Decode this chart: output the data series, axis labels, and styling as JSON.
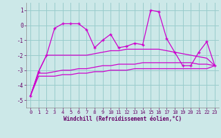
{
  "xlabel": "Windchill (Refroidissement éolien,°C)",
  "background_color": "#cce8e8",
  "grid_color": "#99cccc",
  "line_color": "#cc00cc",
  "x": [
    0,
    1,
    2,
    3,
    4,
    5,
    6,
    7,
    8,
    9,
    10,
    11,
    12,
    13,
    14,
    15,
    16,
    17,
    18,
    19,
    20,
    21,
    22,
    23
  ],
  "y_main": [
    -4.7,
    -3.1,
    -2.0,
    -0.2,
    0.1,
    0.1,
    0.1,
    -0.3,
    -1.5,
    -1.0,
    -0.6,
    -1.5,
    -1.4,
    -1.2,
    -1.3,
    1.0,
    0.9,
    -0.9,
    -1.8,
    -2.7,
    -2.7,
    -1.8,
    -1.1,
    -2.7
  ],
  "y_upper": [
    -4.7,
    -3.1,
    -2.0,
    -2.0,
    -2.0,
    -2.0,
    -2.0,
    -2.0,
    -1.9,
    -1.8,
    -1.7,
    -1.7,
    -1.6,
    -1.6,
    -1.6,
    -1.6,
    -1.6,
    -1.7,
    -1.8,
    -1.9,
    -2.0,
    -2.1,
    -2.2,
    -2.7
  ],
  "y_mid": [
    -4.7,
    -3.2,
    -3.2,
    -3.1,
    -3.0,
    -3.0,
    -2.9,
    -2.9,
    -2.8,
    -2.7,
    -2.7,
    -2.6,
    -2.6,
    -2.6,
    -2.5,
    -2.5,
    -2.5,
    -2.5,
    -2.5,
    -2.5,
    -2.5,
    -2.6,
    -2.6,
    -2.7
  ],
  "y_lower": [
    -4.7,
    -3.4,
    -3.4,
    -3.4,
    -3.3,
    -3.3,
    -3.2,
    -3.2,
    -3.1,
    -3.1,
    -3.0,
    -3.0,
    -3.0,
    -2.9,
    -2.9,
    -2.9,
    -2.9,
    -2.9,
    -2.9,
    -2.9,
    -2.9,
    -2.9,
    -2.9,
    -2.7
  ],
  "ylim": [
    -5.5,
    1.5
  ],
  "yticks": [
    -5,
    -4,
    -3,
    -2,
    -1,
    0,
    1
  ],
  "xticks": [
    0,
    1,
    2,
    3,
    4,
    5,
    6,
    7,
    8,
    9,
    10,
    11,
    12,
    13,
    14,
    15,
    16,
    17,
    18,
    19,
    20,
    21,
    22,
    23
  ]
}
